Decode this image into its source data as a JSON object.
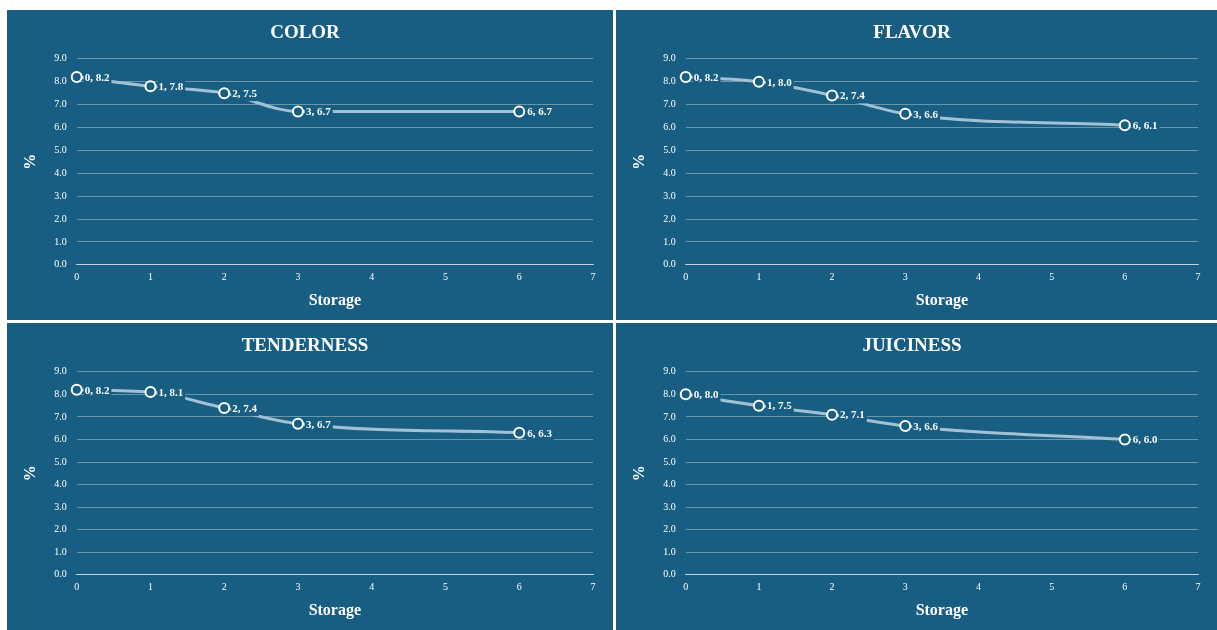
{
  "chart_data": [
    {
      "type": "line",
      "title": "COLOR",
      "xlabel": "Storage",
      "ylabel": "%",
      "marker": "circle",
      "grid": "y",
      "xlim": [
        0,
        7
      ],
      "xticks": [
        0,
        1,
        2,
        3,
        4,
        5,
        6,
        7
      ],
      "ylim": [
        0,
        9
      ],
      "yticks": [
        {
          "value": 0,
          "label": "0.0"
        },
        {
          "value": 1,
          "label": "1.0"
        },
        {
          "value": 2,
          "label": "2.0"
        },
        {
          "value": 3,
          "label": "3.0"
        },
        {
          "value": 4,
          "label": "4.0"
        },
        {
          "value": 5,
          "label": "5.0"
        },
        {
          "value": 6,
          "label": "6.0"
        },
        {
          "value": 7,
          "label": "7.0"
        },
        {
          "value": 8,
          "label": "8.0"
        },
        {
          "value": 9,
          "label": "9.0"
        }
      ],
      "series": [
        {
          "color": "#a3c1d4",
          "x": [
            0,
            1,
            2,
            3,
            6
          ],
          "values": [
            8.2,
            7.8,
            7.5,
            6.7,
            6.7
          ],
          "value_labels": [
            "0, 8.2",
            "1, 7.8",
            "2, 7.5",
            "3, 6.7",
            "6, 6.7"
          ]
        }
      ]
    },
    {
      "type": "line",
      "title": "FLAVOR",
      "xlabel": "Storage",
      "ylabel": "%",
      "marker": "circle",
      "grid": "y",
      "xlim": [
        0,
        7
      ],
      "xticks": [
        0,
        1,
        2,
        3,
        4,
        5,
        6,
        7
      ],
      "ylim": [
        0,
        9
      ],
      "yticks": [
        {
          "value": 0,
          "label": "0.0"
        },
        {
          "value": 1,
          "label": "1.0"
        },
        {
          "value": 2,
          "label": "2.0"
        },
        {
          "value": 3,
          "label": "3.0"
        },
        {
          "value": 4,
          "label": "4.0"
        },
        {
          "value": 5,
          "label": "5.0"
        },
        {
          "value": 6,
          "label": "6.0"
        },
        {
          "value": 7,
          "label": "7.0"
        },
        {
          "value": 8,
          "label": "8.0"
        },
        {
          "value": 9,
          "label": "9.0"
        }
      ],
      "series": [
        {
          "color": "#a3c1d4",
          "x": [
            0,
            1,
            2,
            3,
            6
          ],
          "values": [
            8.2,
            8.0,
            7.4,
            6.6,
            6.1
          ],
          "value_labels": [
            "0, 8.2",
            "1, 8.0",
            "2, 7.4",
            "3, 6.6",
            "6, 6.1"
          ]
        }
      ]
    },
    {
      "type": "line",
      "title": "TENDERNESS",
      "xlabel": "Storage",
      "ylabel": "%",
      "marker": "circle",
      "grid": "y",
      "xlim": [
        0,
        7
      ],
      "xticks": [
        0,
        1,
        2,
        3,
        4,
        5,
        6,
        7
      ],
      "ylim": [
        0,
        9
      ],
      "yticks": [
        {
          "value": 0,
          "label": "0.0"
        },
        {
          "value": 1,
          "label": "1.0"
        },
        {
          "value": 2,
          "label": "2.0"
        },
        {
          "value": 3,
          "label": "3.0"
        },
        {
          "value": 4,
          "label": "4.0"
        },
        {
          "value": 5,
          "label": "5.0"
        },
        {
          "value": 6,
          "label": "6.0"
        },
        {
          "value": 7,
          "label": "7.0"
        },
        {
          "value": 8,
          "label": "8.0"
        },
        {
          "value": 9,
          "label": "9.0"
        }
      ],
      "series": [
        {
          "color": "#a3c1d4",
          "x": [
            0,
            1,
            2,
            3,
            6
          ],
          "values": [
            8.2,
            8.1,
            7.4,
            6.7,
            6.3
          ],
          "value_labels": [
            "0, 8.2",
            "1, 8.1",
            "2, 7.4",
            "3, 6.7",
            "6, 6.3"
          ]
        }
      ]
    },
    {
      "type": "line",
      "title": "JUICINESS",
      "xlabel": "Storage",
      "ylabel": "%",
      "marker": "circle",
      "grid": "y",
      "xlim": [
        0,
        7
      ],
      "xticks": [
        0,
        1,
        2,
        3,
        4,
        5,
        6,
        7
      ],
      "ylim": [
        0,
        9
      ],
      "yticks": [
        {
          "value": 0,
          "label": "0.0"
        },
        {
          "value": 1,
          "label": "1.0"
        },
        {
          "value": 2,
          "label": "2.0"
        },
        {
          "value": 3,
          "label": "3.0"
        },
        {
          "value": 4,
          "label": "4.0"
        },
        {
          "value": 5,
          "label": "5.0"
        },
        {
          "value": 6,
          "label": "6.0"
        },
        {
          "value": 7,
          "label": "7.0"
        },
        {
          "value": 8,
          "label": "8.0"
        },
        {
          "value": 9,
          "label": "9.0"
        }
      ],
      "series": [
        {
          "color": "#a3c1d4",
          "x": [
            0,
            1,
            2,
            3,
            6
          ],
          "values": [
            8.0,
            7.5,
            7.1,
            6.6,
            6.0
          ],
          "value_labels": [
            "0, 8.0",
            "1, 7.5",
            "2, 7.1",
            "3, 6.6",
            "6, 6.0"
          ]
        }
      ]
    }
  ]
}
